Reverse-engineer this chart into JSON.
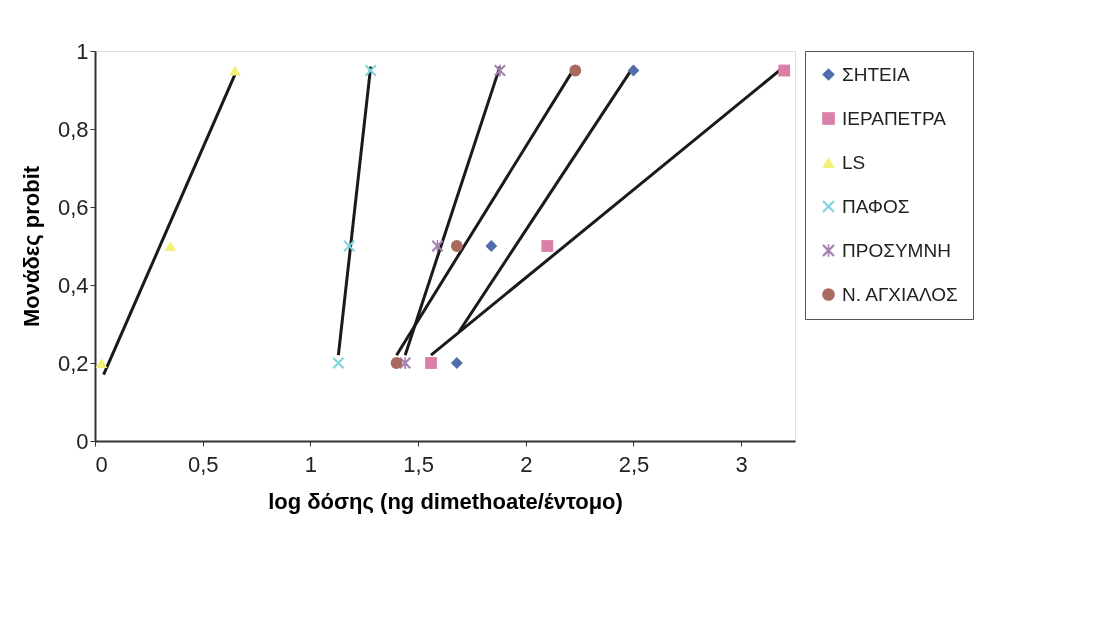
{
  "chart_data": {
    "type": "scatter",
    "xlabel": "log δόσης (ng dimethoate/έντομο)",
    "ylabel": "Μονάδες probit",
    "xlim": [
      0,
      3.25
    ],
    "ylim": [
      0,
      1
    ],
    "xticks": [
      0,
      {
        "value": 0.5,
        "label": "0,5"
      },
      1,
      {
        "value": 1.5,
        "label": "1,5"
      },
      2,
      {
        "value": 2.5,
        "label": "2,5"
      },
      3
    ],
    "yticks": [
      0,
      {
        "value": 0.2,
        "label": "0,2"
      },
      {
        "value": 0.4,
        "label": "0,4"
      },
      {
        "value": 0.6,
        "label": "0,6"
      },
      {
        "value": 0.8,
        "label": "0,8"
      },
      1
    ],
    "grid": false,
    "legend": "right",
    "series": [
      {
        "name": "ΣΗΤΕΙΑ",
        "marker": "diamond",
        "color": "#4f6eaa",
        "x": [
          1.68,
          1.84,
          2.5
        ],
        "values": [
          0.2,
          0.5,
          0.95
        ]
      },
      {
        "name": "ΙΕΡΑΠΕΤΡΑ",
        "marker": "square",
        "color": "#d97fa8",
        "x": [
          1.56,
          2.1,
          3.2
        ],
        "values": [
          0.2,
          0.5,
          0.95
        ]
      },
      {
        "name": "LS",
        "marker": "triangle",
        "color": "#f2f27a",
        "x": [
          0.03,
          0.35,
          0.65
        ],
        "values": [
          0.2,
          0.5,
          0.95
        ]
      },
      {
        "name": "ΠΑΦΟΣ",
        "marker": "cross",
        "color": "#7fd6dd",
        "x": [
          1.13,
          1.18,
          1.28
        ],
        "values": [
          0.2,
          0.5,
          0.95
        ]
      },
      {
        "name": "ΠΡΟΣΥΜΝΗ",
        "marker": "star",
        "color": "#a77fb0",
        "x": [
          1.44,
          1.59,
          1.88
        ],
        "values": [
          0.2,
          0.5,
          0.95
        ]
      },
      {
        "name": "Ν. ΑΓΧΙΑΛΟΣ",
        "marker": "circle",
        "color": "#a86a5f",
        "x": [
          1.4,
          1.68,
          2.23
        ],
        "values": [
          0.2,
          0.5,
          0.95
        ]
      },
      {
        "type": "line",
        "color": "#1a1a1a",
        "x": [
          0.04,
          0.65
        ],
        "values": [
          0.17,
          0.94
        ]
      },
      {
        "type": "line",
        "color": "#1a1a1a",
        "x": [
          1.13,
          1.28
        ],
        "values": [
          0.22,
          0.96
        ]
      },
      {
        "type": "line",
        "color": "#1a1a1a",
        "x": [
          1.44,
          1.88
        ],
        "values": [
          0.22,
          0.96
        ]
      },
      {
        "type": "line",
        "color": "#1a1a1a",
        "x": [
          1.4,
          2.23
        ],
        "values": [
          0.22,
          0.96
        ]
      },
      {
        "type": "line",
        "color": "#1a1a1a",
        "x": [
          1.69,
          2.5
        ],
        "values": [
          0.28,
          0.96
        ]
      },
      {
        "type": "line",
        "color": "#1a1a1a",
        "x": [
          1.56,
          3.2
        ],
        "values": [
          0.22,
          0.96
        ]
      }
    ]
  }
}
